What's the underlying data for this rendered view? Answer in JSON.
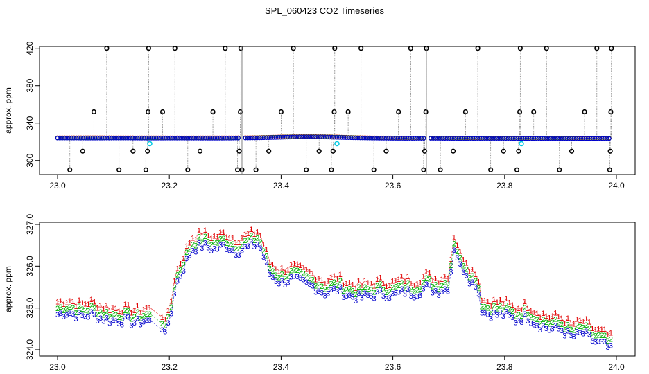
{
  "title": "SPL_060423  CO2 Timeseries",
  "colors": {
    "red": "#e00000",
    "green": "#00b000",
    "blue": "#0000cc",
    "cyan": "#00c8e0",
    "gray": "#808080"
  },
  "chart_data": [
    {
      "type": "scatter",
      "panel": "top",
      "ylabel": "approx. ppm",
      "xlim": [
        23.0,
        24.0
      ],
      "ylim": [
        285,
        422
      ],
      "x_ticks": [
        23.0,
        23.2,
        23.4,
        23.6,
        23.8,
        24.0
      ],
      "x_tick_labels": [
        "23.0",
        "23.2",
        "23.4",
        "23.6",
        "23.8",
        "24.0"
      ],
      "y_ticks": [
        300,
        340,
        380,
        420
      ],
      "y_tick_labels": [
        "300",
        "340",
        "380",
        "420"
      ],
      "baseline": {
        "start": 23.0,
        "end": 23.99,
        "level_start": 324,
        "level_end": 323.5,
        "bump_center": 23.45,
        "bump_height": 1.5
      },
      "spikes": [
        {
          "x": 23.022,
          "y": 290
        },
        {
          "x": 23.045,
          "y": 310
        },
        {
          "x": 23.065,
          "y": 352
        },
        {
          "x": 23.088,
          "y": 420
        },
        {
          "x": 23.11,
          "y": 290
        },
        {
          "x": 23.135,
          "y": 310
        },
        {
          "x": 23.158,
          "y": 290
        },
        {
          "x": 23.161,
          "y": 310
        },
        {
          "x": 23.162,
          "y": 352
        },
        {
          "x": 23.163,
          "y": 420
        },
        {
          "x": 23.188,
          "y": 352
        },
        {
          "x": 23.21,
          "y": 420
        },
        {
          "x": 23.233,
          "y": 290
        },
        {
          "x": 23.255,
          "y": 310
        },
        {
          "x": 23.278,
          "y": 352
        },
        {
          "x": 23.3,
          "y": 420
        },
        {
          "x": 23.322,
          "y": 290
        },
        {
          "x": 23.325,
          "y": 310
        },
        {
          "x": 23.327,
          "y": 352
        },
        {
          "x": 23.328,
          "y": 420
        },
        {
          "x": 23.33,
          "y": 290
        },
        {
          "x": 23.355,
          "y": 290
        },
        {
          "x": 23.378,
          "y": 310
        },
        {
          "x": 23.4,
          "y": 352
        },
        {
          "x": 23.422,
          "y": 420
        },
        {
          "x": 23.445,
          "y": 290
        },
        {
          "x": 23.468,
          "y": 310
        },
        {
          "x": 23.49,
          "y": 290
        },
        {
          "x": 23.493,
          "y": 310
        },
        {
          "x": 23.495,
          "y": 352
        },
        {
          "x": 23.496,
          "y": 420
        },
        {
          "x": 23.52,
          "y": 352
        },
        {
          "x": 23.543,
          "y": 420
        },
        {
          "x": 23.566,
          "y": 290
        },
        {
          "x": 23.588,
          "y": 310
        },
        {
          "x": 23.61,
          "y": 352
        },
        {
          "x": 23.632,
          "y": 420
        },
        {
          "x": 23.655,
          "y": 290
        },
        {
          "x": 23.657,
          "y": 310
        },
        {
          "x": 23.659,
          "y": 352
        },
        {
          "x": 23.66,
          "y": 420
        },
        {
          "x": 23.685,
          "y": 290
        },
        {
          "x": 23.708,
          "y": 310
        },
        {
          "x": 23.73,
          "y": 352
        },
        {
          "x": 23.752,
          "y": 420
        },
        {
          "x": 23.775,
          "y": 290
        },
        {
          "x": 23.798,
          "y": 310
        },
        {
          "x": 23.822,
          "y": 290
        },
        {
          "x": 23.825,
          "y": 310
        },
        {
          "x": 23.827,
          "y": 352
        },
        {
          "x": 23.828,
          "y": 420
        },
        {
          "x": 23.852,
          "y": 352
        },
        {
          "x": 23.875,
          "y": 420
        },
        {
          "x": 23.898,
          "y": 290
        },
        {
          "x": 23.92,
          "y": 310
        },
        {
          "x": 23.943,
          "y": 352
        },
        {
          "x": 23.965,
          "y": 420
        },
        {
          "x": 23.988,
          "y": 290
        },
        {
          "x": 23.989,
          "y": 310
        },
        {
          "x": 23.99,
          "y": 352
        },
        {
          "x": 23.991,
          "y": 420
        }
      ],
      "cyan_points": [
        {
          "x": 23.165,
          "y": 318
        },
        {
          "x": 23.5,
          "y": 318
        },
        {
          "x": 23.83,
          "y": 318
        }
      ],
      "gaps": [
        23.33,
        23.66
      ]
    },
    {
      "type": "line",
      "panel": "bottom",
      "ylabel": "approx. ppm",
      "xlim": [
        23.0,
        24.0
      ],
      "ylim": [
        323.85,
        327.05
      ],
      "x_ticks": [
        23.0,
        23.2,
        23.4,
        23.6,
        23.8,
        24.0
      ],
      "x_tick_labels": [
        "23.0",
        "23.2",
        "23.4",
        "23.6",
        "23.8",
        "24.0"
      ],
      "y_ticks": [
        324.0,
        325.0,
        326.0,
        327.0
      ],
      "y_tick_labels": [
        "324.0",
        "325.0",
        "326.0",
        "327.0"
      ],
      "series": [
        {
          "name": "1",
          "color": "red",
          "offset": 0.3
        },
        {
          "name": "2",
          "color": "green",
          "offset": 0.15
        },
        {
          "name": "3",
          "color": "blue",
          "offset": 0.0
        }
      ],
      "x": [
        23.0,
        23.02,
        23.04,
        23.06,
        23.08,
        23.1,
        23.12,
        23.14,
        23.16,
        23.18,
        23.19,
        23.2,
        23.21,
        23.22,
        23.24,
        23.26,
        23.28,
        23.3,
        23.32,
        23.34,
        23.36,
        23.38,
        23.4,
        23.42,
        23.44,
        23.46,
        23.48,
        23.5,
        23.52,
        23.54,
        23.56,
        23.58,
        23.6,
        23.62,
        23.64,
        23.66,
        23.68,
        23.7,
        23.71,
        23.72,
        23.73,
        23.74,
        23.75,
        23.76,
        23.78,
        23.8,
        23.82,
        23.84,
        23.86,
        23.88,
        23.9,
        23.92,
        23.94,
        23.96,
        23.98,
        23.99
      ],
      "base": [
        324.85,
        324.9,
        324.8,
        324.85,
        324.75,
        324.7,
        324.7,
        324.65,
        324.7,
        324.6,
        324.5,
        324.55,
        325.5,
        325.8,
        326.4,
        326.5,
        326.4,
        326.5,
        326.35,
        326.45,
        326.55,
        325.8,
        325.6,
        325.7,
        325.6,
        325.5,
        325.35,
        325.45,
        325.3,
        325.25,
        325.3,
        325.35,
        325.3,
        325.4,
        325.35,
        325.5,
        325.4,
        325.5,
        326.5,
        326.0,
        325.9,
        325.6,
        325.6,
        324.9,
        324.85,
        324.85,
        324.7,
        324.8,
        324.6,
        324.5,
        324.5,
        324.3,
        324.4,
        324.2,
        324.1,
        324.0
      ]
    }
  ]
}
